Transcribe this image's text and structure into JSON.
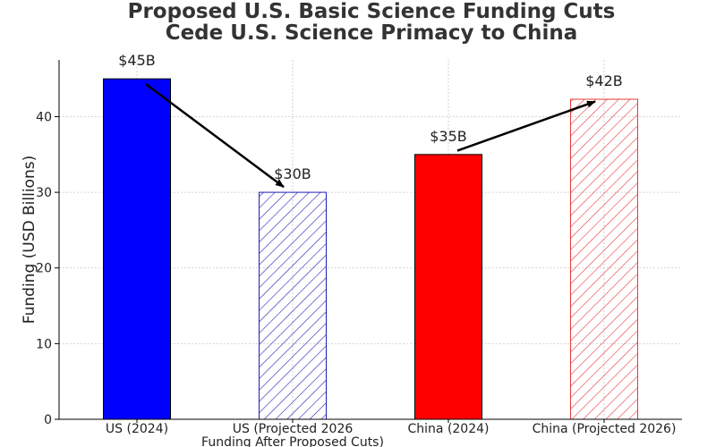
{
  "chart_data": {
    "type": "bar",
    "title": "Proposed U.S. Basic Science Funding Cuts",
    "subtitle": "Cede U.S. Science Primacy to China",
    "ylabel": "Funding (USD Billions)",
    "xlabel": "",
    "ylim": [
      0,
      47.5
    ],
    "yticks": [
      0,
      10,
      20,
      30,
      40
    ],
    "grid": true,
    "categories": [
      [
        "US (2024)"
      ],
      [
        "US (Projected 2026",
        "Funding After Proposed Cuts)"
      ],
      [
        "China (2024)"
      ],
      [
        "China (Projected 2026)"
      ]
    ],
    "values": [
      45,
      30,
      35,
      42.3
    ],
    "data_labels": [
      "$45B",
      "$30B",
      "$35B",
      "$42B"
    ],
    "fill_styles": [
      "solid",
      "hatched",
      "solid",
      "hatched"
    ],
    "colors": [
      "#0000ff",
      "#1f1fb4",
      "#ff0000",
      "#e8383a"
    ],
    "arrows": [
      {
        "from_category": 0,
        "from_value": 44.3,
        "to_category": 1,
        "to_value": 30.7
      },
      {
        "from_category": 2,
        "from_value": 35.5,
        "to_category": 3,
        "to_value": 42.0
      }
    ]
  }
}
